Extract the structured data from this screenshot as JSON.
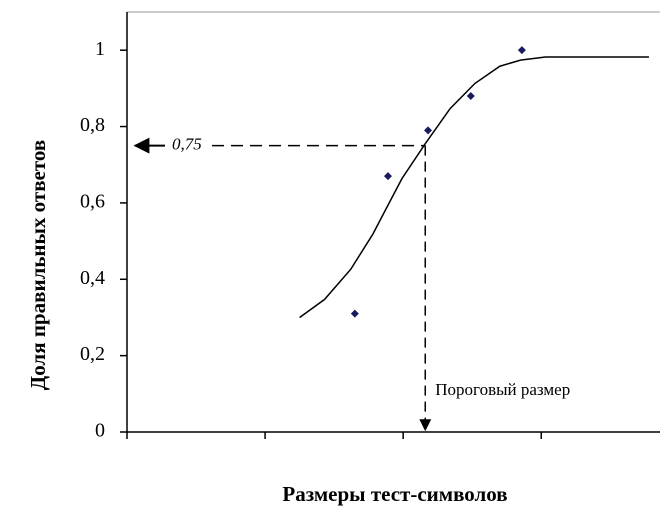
{
  "chart_data": {
    "type": "scatter",
    "x_label": "Размеры тест-символов",
    "y_label": "Доля правильных ответов",
    "x": [
      1.65,
      1.89,
      2.18,
      2.49,
      2.86
    ],
    "values": [
      0.31,
      0.67,
      0.79,
      0.88,
      1.0
    ],
    "color": "#1a1a5e",
    "curve": {
      "color": "#000000",
      "x": [
        1.25,
        1.43,
        1.62,
        1.78,
        1.99,
        2.16,
        2.34,
        2.52,
        2.7,
        2.85,
        3.03,
        3.78
      ],
      "values": [
        0.3,
        0.347,
        0.426,
        0.518,
        0.663,
        0.755,
        0.847,
        0.913,
        0.958,
        0.974,
        0.982,
        0.982
      ]
    },
    "threshold": {
      "value": 0.75,
      "label": "0,75",
      "x": 2.16,
      "text": "Пороговый размер"
    },
    "xlim": [
      0,
      3.86
    ],
    "xticks": [
      0,
      1,
      2,
      3
    ],
    "ylim": [
      0,
      1.1
    ],
    "yticks": [
      0,
      {
        "value": 0.2,
        "label": "0,2"
      },
      {
        "value": 0.4,
        "label": "0,4"
      },
      {
        "value": 0.6,
        "label": "0,6"
      },
      {
        "value": 0.8,
        "label": "0,8"
      },
      1
    ]
  }
}
